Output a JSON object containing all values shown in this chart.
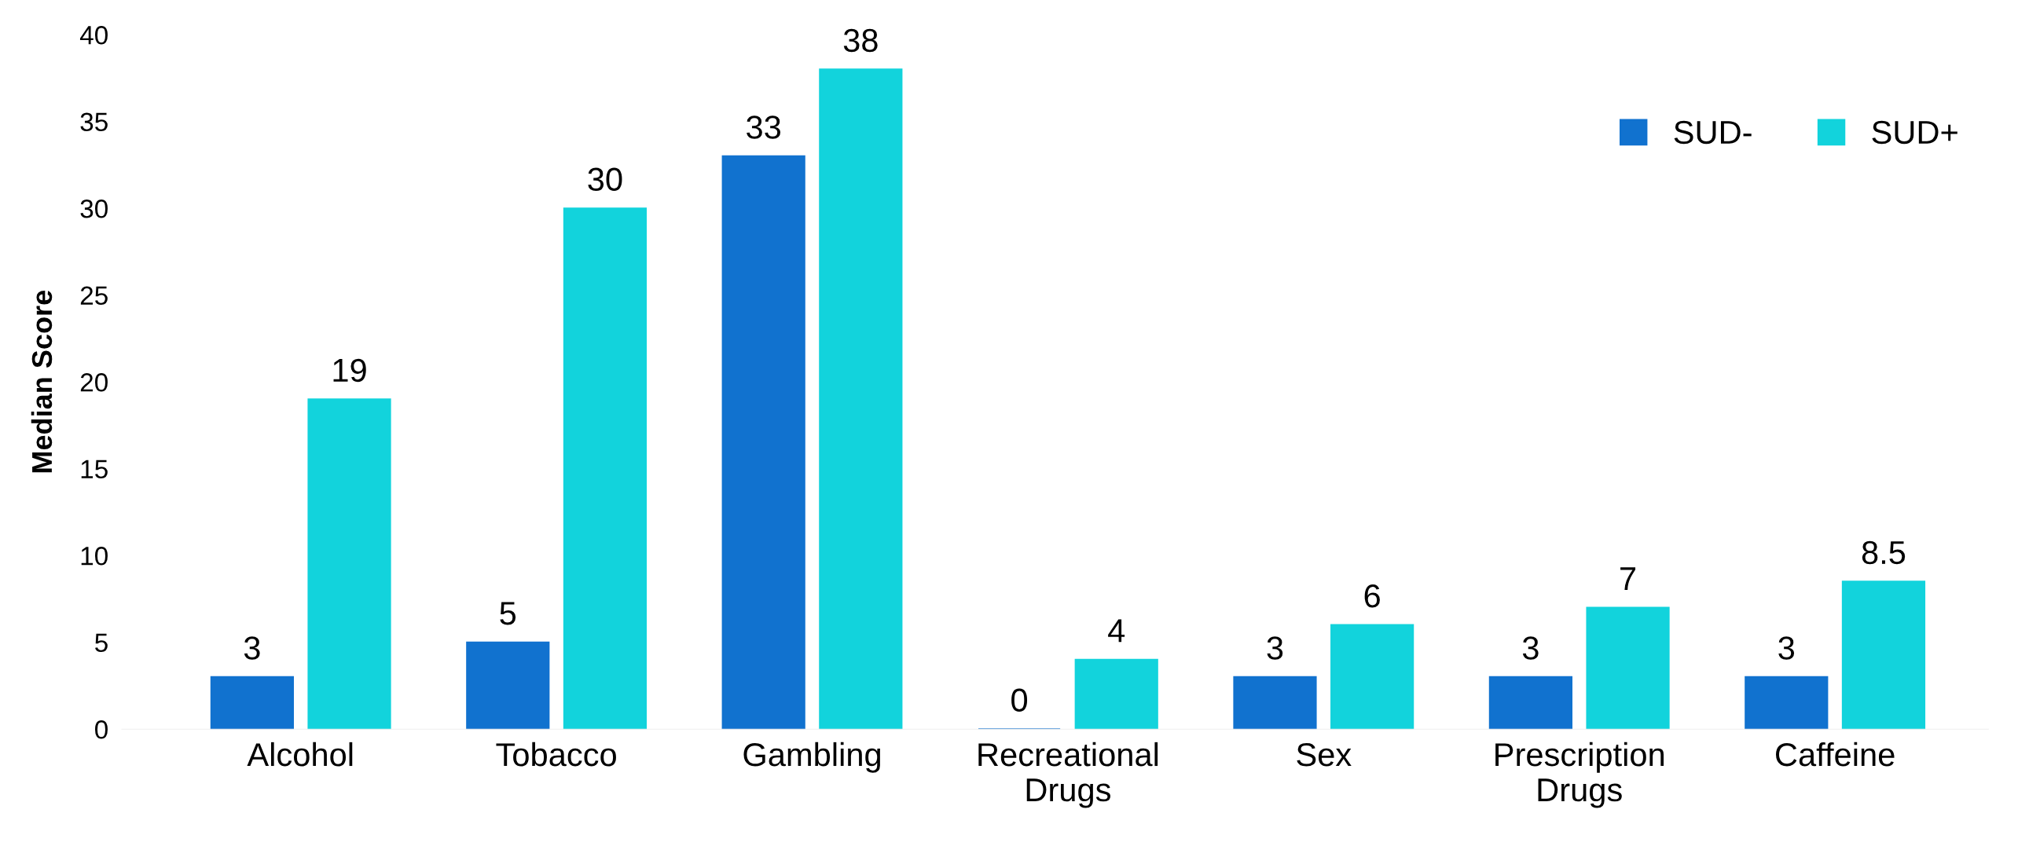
{
  "chart_data": {
    "type": "bar",
    "ylabel": "Median Score",
    "categories": [
      "Alcohol",
      "Tobacco",
      "Gambling",
      "Recreational\nDrugs",
      "Sex",
      "Prescription\nDrugs",
      "Caffeine"
    ],
    "series": [
      {
        "name": "SUD-",
        "color": "#1172cf",
        "values": [
          3,
          5,
          33,
          0,
          3,
          3,
          3
        ]
      },
      {
        "name": "SUD+",
        "color": "#12d3dc",
        "values": [
          19,
          30,
          38,
          4,
          6,
          7,
          8.5
        ]
      }
    ],
    "ylim": [
      0,
      40
    ],
    "yticks": [
      0,
      5,
      10,
      15,
      20,
      25,
      30,
      35,
      40
    ],
    "data_labels": true,
    "grid": false,
    "legend": "top right"
  }
}
